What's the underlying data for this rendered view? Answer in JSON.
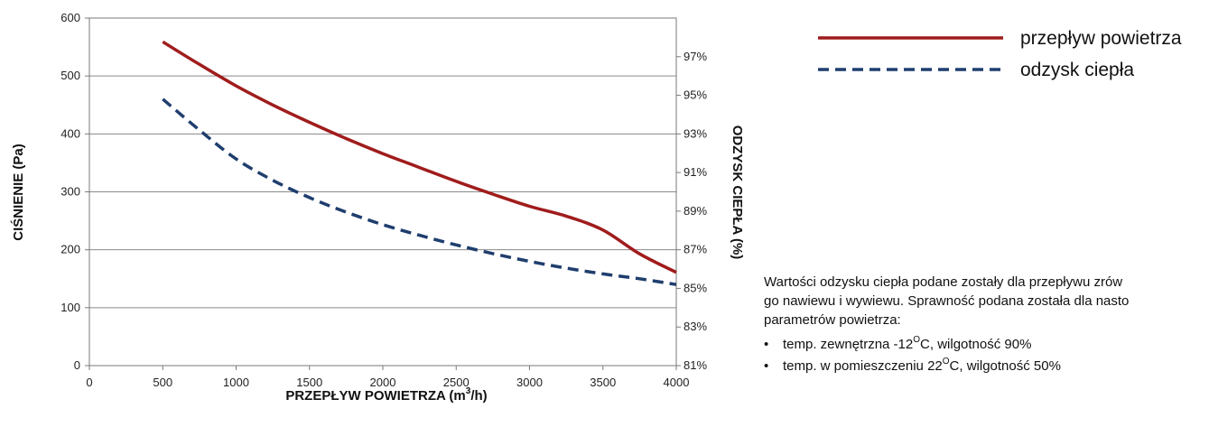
{
  "chart_data": {
    "type": "line",
    "xlabel": {
      "prefix": "PRZEPŁYW POWIETRZA (m",
      "sup": "3",
      "suffix": "/h)"
    },
    "ylabel_left": "CIŚNIENIE (Pa)",
    "ylabel_right": "ODZYSK CIEPŁA (%)",
    "xlim": [
      0,
      4000
    ],
    "ylim_left": [
      0,
      600
    ],
    "ylim_right": [
      81,
      99
    ],
    "x_ticks": [
      "0",
      "500",
      "1000",
      "1500",
      "2000",
      "2500",
      "3000",
      "3500",
      "4000"
    ],
    "y_left_ticks": [
      "0",
      "100",
      "200",
      "300",
      "400",
      "500",
      "600"
    ],
    "y_right_ticks": [
      "81%",
      "83%",
      "85%",
      "87%",
      "89%",
      "91%",
      "93%",
      "95%",
      "97%"
    ],
    "grid": "horizontal",
    "legend_position": "top-right",
    "series": [
      {
        "name": "przepływ powietrza",
        "axis": "left",
        "color": "#a01c1c",
        "style": "solid",
        "x": [
          500,
          750,
          1000,
          1250,
          1500,
          1750,
          2000,
          2250,
          2500,
          2750,
          3000,
          3250,
          3500,
          3750,
          4000
        ],
        "y": [
          559,
          520,
          483,
          450,
          420,
          392,
          366,
          342,
          318,
          296,
          275,
          258,
          234,
          193,
          161
        ]
      },
      {
        "name": "odzysk ciepła",
        "axis": "right",
        "color": "#1f3e6e",
        "style": "dashed",
        "x": [
          500,
          750,
          1000,
          1250,
          1500,
          1750,
          2000,
          2250,
          2500,
          2750,
          3000,
          3250,
          3500,
          3750,
          4000
        ],
        "y": [
          94.8,
          93.2,
          91.7,
          90.6,
          89.7,
          88.95,
          88.3,
          87.75,
          87.25,
          86.8,
          86.4,
          86.05,
          85.75,
          85.5,
          85.2
        ]
      }
    ]
  },
  "note": {
    "line1": "Wartości odzysku ciepła podane zostały dla przepływu zrów",
    "line2": "go nawiewu i wywiewu. Sprawność podana została dla nasto",
    "line3": "parametrów powietrza:",
    "bullets": [
      {
        "marker": "•",
        "pre": "temp. zewnętrzna -12",
        "sup": "O",
        "post": "C, wilgotność 90%"
      },
      {
        "marker": "•",
        "pre": "temp. w pomieszczeniu 22",
        "sup": "O",
        "post": "C, wilgotność 50%"
      }
    ]
  }
}
